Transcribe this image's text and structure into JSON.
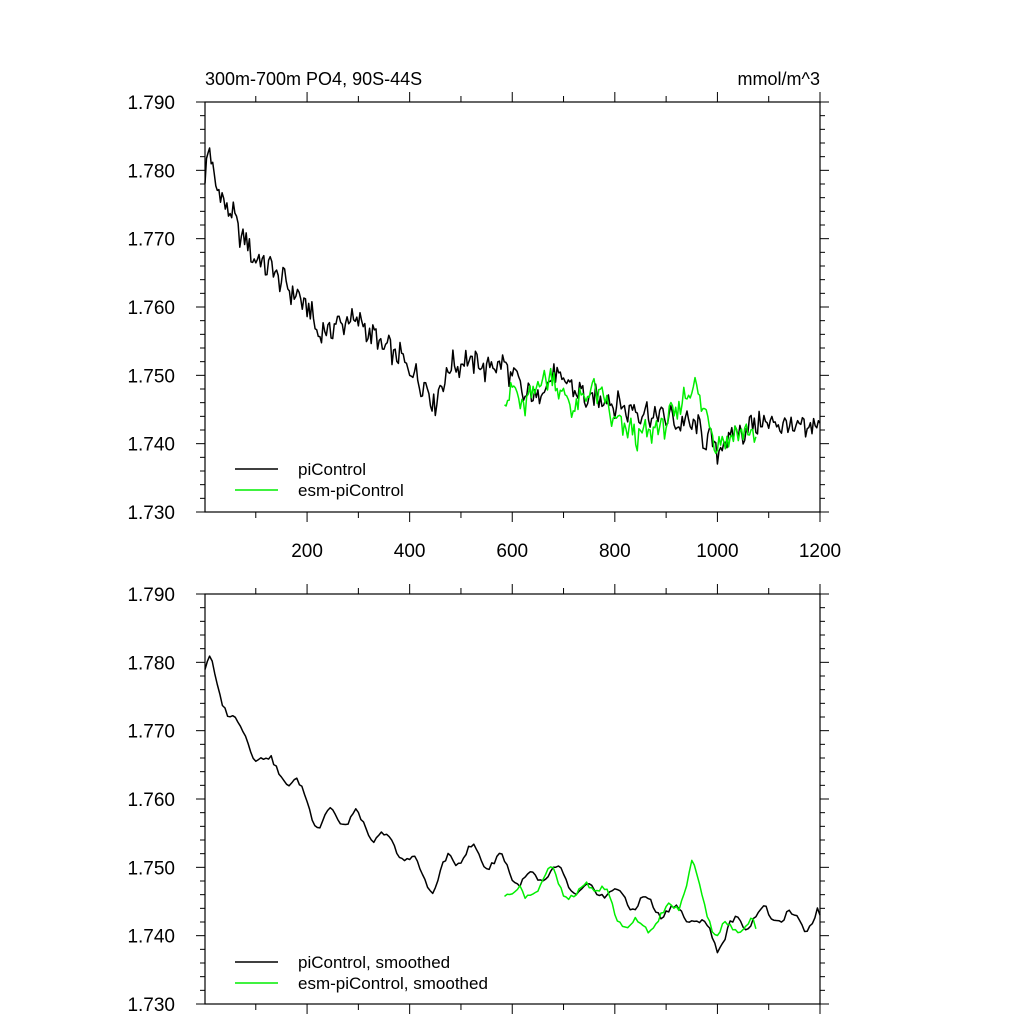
{
  "chart_data": [
    {
      "type": "line",
      "title": "300m-700m PO4, 90S-44S",
      "units": "mmol/m^3",
      "xlim": [
        1,
        1200
      ],
      "ylim": [
        1.73,
        1.79
      ],
      "x_ticks": [
        200,
        400,
        600,
        800,
        1000,
        1200
      ],
      "x_tick_labels": [
        "200",
        "400",
        "600",
        "800",
        "1000",
        "1200"
      ],
      "y_ticks": [
        1.73,
        1.74,
        1.75,
        1.76,
        1.77,
        1.78,
        1.79
      ],
      "y_tick_labels": [
        "1.730",
        "1.740",
        "1.750",
        "1.760",
        "1.770",
        "1.780",
        "1.790"
      ],
      "legend_position": "bottom-left",
      "series": [
        {
          "name": "piControl",
          "color": "#000000",
          "x": [
            1,
            10,
            25,
            50,
            75,
            100,
            125,
            150,
            175,
            200,
            225,
            250,
            275,
            300,
            325,
            350,
            375,
            400,
            425,
            450,
            475,
            500,
            525,
            550,
            575,
            600,
            625,
            650,
            675,
            700,
            725,
            750,
            775,
            800,
            825,
            850,
            875,
            900,
            925,
            950,
            975,
            1000,
            1025,
            1050,
            1075,
            1100,
            1125,
            1150,
            1175,
            1200
          ],
          "values": [
            1.779,
            1.783,
            1.777,
            1.774,
            1.77,
            1.767,
            1.766,
            1.764,
            1.762,
            1.76,
            1.756,
            1.757,
            1.758,
            1.758,
            1.756,
            1.754,
            1.753,
            1.751,
            1.749,
            1.746,
            1.751,
            1.752,
            1.752,
            1.751,
            1.752,
            1.75,
            1.747,
            1.747,
            1.75,
            1.749,
            1.748,
            1.746,
            1.747,
            1.746,
            1.745,
            1.745,
            1.744,
            1.744,
            1.743,
            1.743,
            1.741,
            1.739,
            1.741,
            1.742,
            1.743,
            1.743,
            1.743,
            1.742,
            1.742,
            1.743
          ]
        },
        {
          "name": "esm-piControl",
          "color": "#00ee00",
          "x": [
            585,
            600,
            625,
            650,
            675,
            700,
            725,
            750,
            775,
            800,
            825,
            850,
            875,
            900,
            925,
            950,
            975,
            1000,
            1025,
            1050,
            1075
          ],
          "values": [
            1.747,
            1.748,
            1.745,
            1.749,
            1.75,
            1.747,
            1.745,
            1.748,
            1.747,
            1.743,
            1.742,
            1.741,
            1.742,
            1.743,
            1.745,
            1.749,
            1.745,
            1.74,
            1.741,
            1.742,
            1.741
          ]
        }
      ]
    },
    {
      "type": "line",
      "xlim": [
        1,
        1200
      ],
      "ylim": [
        1.73,
        1.79
      ],
      "y_ticks": [
        1.73,
        1.74,
        1.75,
        1.76,
        1.77,
        1.78,
        1.79
      ],
      "y_tick_labels": [
        "1.730",
        "1.740",
        "1.750",
        "1.760",
        "1.770",
        "1.780",
        "1.790"
      ],
      "legend_position": "bottom-left",
      "series": [
        {
          "name": "piControl, smoothed",
          "color": "#000000",
          "x": [
            1,
            10,
            25,
            50,
            75,
            100,
            125,
            150,
            175,
            200,
            225,
            250,
            275,
            300,
            325,
            350,
            375,
            400,
            425,
            450,
            475,
            500,
            525,
            550,
            575,
            600,
            625,
            650,
            675,
            700,
            725,
            750,
            775,
            800,
            825,
            850,
            875,
            900,
            925,
            950,
            975,
            1000,
            1025,
            1050,
            1075,
            1100,
            1125,
            1150,
            1175,
            1200
          ],
          "values": [
            1.779,
            1.78,
            1.776,
            1.773,
            1.769,
            1.767,
            1.765,
            1.764,
            1.762,
            1.76,
            1.756,
            1.758,
            1.757,
            1.757,
            1.755,
            1.754,
            1.753,
            1.751,
            1.749,
            1.747,
            1.751,
            1.752,
            1.752,
            1.751,
            1.751,
            1.749,
            1.748,
            1.748,
            1.75,
            1.748,
            1.747,
            1.746,
            1.747,
            1.746,
            1.745,
            1.745,
            1.744,
            1.744,
            1.743,
            1.743,
            1.741,
            1.739,
            1.741,
            1.742,
            1.743,
            1.743,
            1.743,
            1.742,
            1.742,
            1.743
          ]
        },
        {
          "name": "esm-piControl, smoothed",
          "color": "#00ee00",
          "x": [
            585,
            600,
            625,
            650,
            675,
            700,
            725,
            750,
            775,
            800,
            825,
            850,
            875,
            900,
            925,
            950,
            975,
            1000,
            1025,
            1050,
            1075
          ],
          "values": [
            1.747,
            1.747,
            1.745,
            1.748,
            1.749,
            1.747,
            1.745,
            1.748,
            1.747,
            1.743,
            1.742,
            1.741,
            1.742,
            1.743,
            1.745,
            1.75,
            1.745,
            1.74,
            1.741,
            1.742,
            1.741
          ]
        }
      ]
    }
  ]
}
